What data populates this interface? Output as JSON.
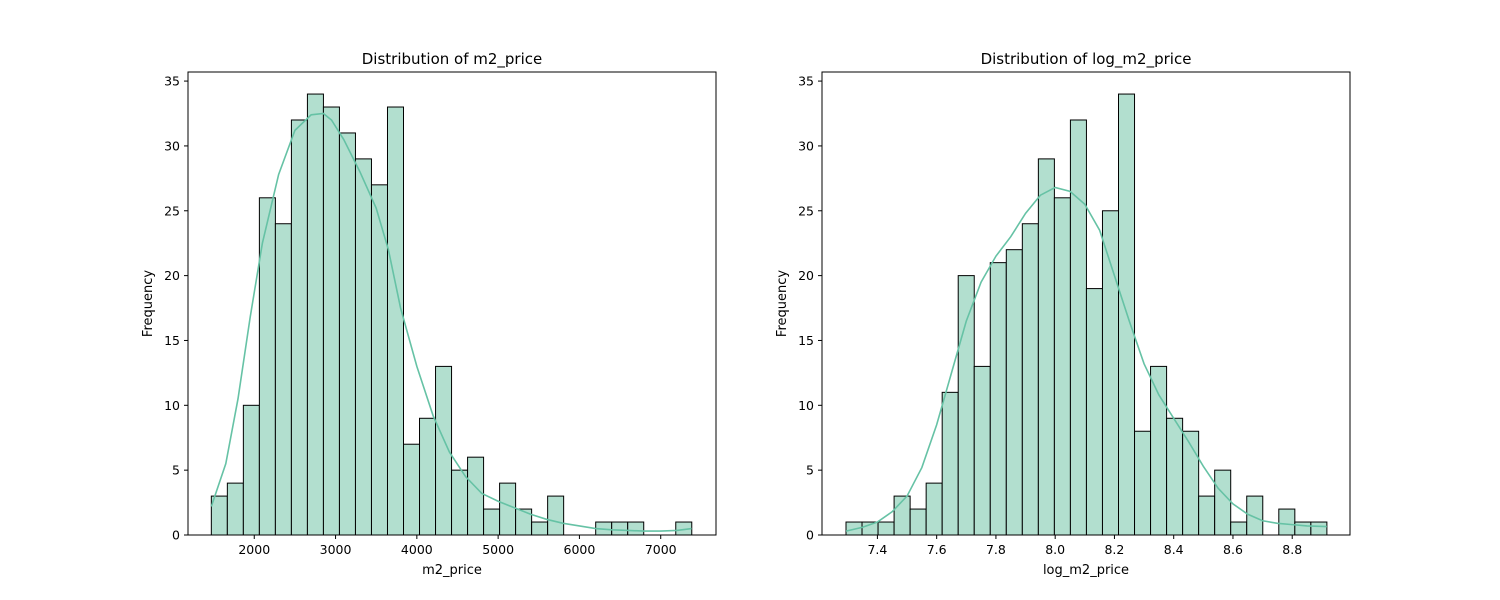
{
  "chart_data": [
    {
      "type": "bar",
      "title": "Distribution of m2_price",
      "xlabel": "m2_price",
      "ylabel": "Frequency",
      "bin_start": 1472,
      "bin_width": 197,
      "counts": [
        3,
        4,
        10,
        26,
        24,
        32,
        34,
        33,
        31,
        29,
        27,
        33,
        7,
        9,
        13,
        5,
        6,
        2,
        4,
        2,
        1,
        3,
        0,
        0,
        1,
        1,
        1,
        0,
        0,
        1
      ],
      "xlim": [
        1185,
        7680
      ],
      "ylim": [
        0,
        35.7
      ],
      "xticks": [
        2000,
        3000,
        4000,
        5000,
        6000,
        7000
      ],
      "yticks": [
        0,
        5,
        10,
        15,
        20,
        25,
        30,
        35
      ],
      "kde": {
        "x": [
          1472,
          1650,
          1800,
          1950,
          2100,
          2300,
          2500,
          2700,
          2850,
          2950,
          3100,
          3300,
          3500,
          3650,
          3800,
          4000,
          4200,
          4400,
          4600,
          4800,
          5000,
          5200,
          5400,
          5600,
          5800,
          6000,
          6200,
          6400,
          6600,
          6800,
          7000,
          7200,
          7381
        ],
        "y": [
          2.2,
          5.5,
          10.5,
          16.8,
          22.5,
          27.8,
          31.2,
          32.4,
          32.5,
          32.0,
          30.5,
          28.0,
          25.2,
          22.0,
          17.5,
          13.0,
          9.2,
          6.4,
          4.5,
          3.2,
          2.6,
          2.1,
          1.6,
          1.2,
          0.9,
          0.7,
          0.5,
          0.4,
          0.35,
          0.3,
          0.3,
          0.35,
          0.5
        ]
      },
      "colors": {
        "bar": "#b2dfcf",
        "edge": "#000000",
        "kde": "#66c2a5"
      }
    },
    {
      "type": "bar",
      "title": "Distribution of log_m2_price",
      "xlabel": "log_m2_price",
      "ylabel": "Frequency",
      "bin_start": 7.294,
      "bin_width": 0.0541,
      "counts": [
        1,
        1,
        1,
        3,
        2,
        4,
        11,
        20,
        13,
        21,
        22,
        24,
        29,
        26,
        32,
        19,
        25,
        34,
        8,
        13,
        9,
        8,
        3,
        5,
        1,
        3,
        0,
        2,
        1,
        1
      ],
      "xlim": [
        7.213,
        8.995
      ],
      "ylim": [
        0,
        35.7
      ],
      "xticks": [
        7.4,
        7.6,
        7.8,
        8.0,
        8.2,
        8.4,
        8.6,
        8.8
      ],
      "xtick_labels": [
        "7.4",
        "7.6",
        "7.8",
        "8.0",
        "8.2",
        "8.4",
        "8.6",
        "8.8"
      ],
      "yticks": [
        0,
        5,
        10,
        15,
        20,
        25,
        30,
        35
      ],
      "kde": {
        "x": [
          7.294,
          7.35,
          7.4,
          7.45,
          7.5,
          7.55,
          7.6,
          7.65,
          7.7,
          7.75,
          7.8,
          7.85,
          7.9,
          7.95,
          8.0,
          8.05,
          8.1,
          8.15,
          8.2,
          8.25,
          8.3,
          8.35,
          8.4,
          8.45,
          8.5,
          8.55,
          8.6,
          8.65,
          8.7,
          8.75,
          8.8,
          8.85,
          8.917
        ],
        "y": [
          0.3,
          0.6,
          1.0,
          1.8,
          3.0,
          5.2,
          8.5,
          12.5,
          16.5,
          19.5,
          21.5,
          23.0,
          24.8,
          26.2,
          26.8,
          26.5,
          25.5,
          23.5,
          20.0,
          16.5,
          13.2,
          10.8,
          9.0,
          7.2,
          5.3,
          3.6,
          2.4,
          1.6,
          1.1,
          0.9,
          0.8,
          0.7,
          0.65
        ]
      },
      "colors": {
        "bar": "#b2dfcf",
        "edge": "#000000",
        "kde": "#66c2a5"
      }
    }
  ]
}
